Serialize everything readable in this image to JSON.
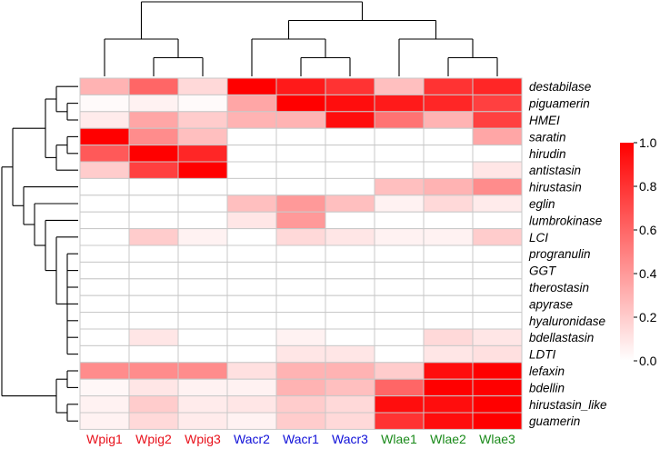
{
  "chart_data": {
    "type": "heatmap",
    "title": "",
    "columns": [
      "Wpig1",
      "Wpig2",
      "Wpig3",
      "Wacr2",
      "Wacr1",
      "Wacr3",
      "Wlae1",
      "Wlae2",
      "Wlae3"
    ],
    "column_colors": [
      "#e8101a",
      "#e8101a",
      "#e8101a",
      "#1010d8",
      "#1010d8",
      "#1010d8",
      "#1a8a1a",
      "#1a8a1a",
      "#1a8a1a"
    ],
    "rows": [
      "destabilase",
      "piguamerin",
      "HMEI",
      "saratin",
      "hirudin",
      "antistasin",
      "hirustasin",
      "eglin",
      "lumbrokinase",
      "LCI",
      "progranulin",
      "GGT",
      "therostasin",
      "apyrase",
      "hyaluronidase",
      "bdellastasin",
      "LDTI",
      "lefaxin",
      "bdellin",
      "hirustasin_like",
      "guamerin"
    ],
    "values": [
      [
        0.3,
        0.6,
        0.15,
        1.0,
        0.9,
        0.8,
        0.25,
        0.8,
        0.85
      ],
      [
        0.02,
        0.05,
        0.02,
        0.35,
        1.0,
        0.95,
        0.9,
        0.85,
        0.75
      ],
      [
        0.08,
        0.35,
        0.2,
        0.3,
        0.3,
        0.95,
        0.55,
        0.3,
        0.75
      ],
      [
        1.0,
        0.45,
        0.25,
        0.0,
        0.0,
        0.0,
        0.0,
        0.0,
        0.35
      ],
      [
        0.65,
        1.0,
        0.85,
        0.0,
        0.0,
        0.0,
        0.0,
        0.0,
        0.0
      ],
      [
        0.2,
        0.75,
        1.0,
        0.0,
        0.0,
        0.0,
        0.0,
        0.0,
        0.1
      ],
      [
        0.0,
        0.0,
        0.0,
        0.0,
        0.0,
        0.0,
        0.25,
        0.3,
        0.45
      ],
      [
        0.0,
        0.0,
        0.0,
        0.25,
        0.4,
        0.25,
        0.05,
        0.15,
        0.08
      ],
      [
        0.0,
        0.0,
        0.0,
        0.1,
        0.4,
        0.0,
        0.0,
        0.0,
        0.0
      ],
      [
        0.0,
        0.2,
        0.05,
        0.0,
        0.15,
        0.1,
        0.05,
        0.05,
        0.2
      ],
      [
        0.0,
        0.0,
        0.0,
        0.0,
        0.0,
        0.0,
        0.0,
        0.0,
        0.0
      ],
      [
        0.0,
        0.0,
        0.0,
        0.0,
        0.0,
        0.0,
        0.0,
        0.0,
        0.0
      ],
      [
        0.0,
        0.0,
        0.0,
        0.0,
        0.0,
        0.0,
        0.0,
        0.0,
        0.0
      ],
      [
        0.0,
        0.0,
        0.0,
        0.0,
        0.0,
        0.0,
        0.0,
        0.0,
        0.0
      ],
      [
        0.0,
        0.0,
        0.0,
        0.0,
        0.0,
        0.0,
        0.0,
        0.0,
        0.0
      ],
      [
        0.0,
        0.1,
        0.0,
        0.0,
        0.05,
        0.0,
        0.0,
        0.15,
        0.1
      ],
      [
        0.0,
        0.0,
        0.0,
        0.0,
        0.1,
        0.1,
        0.0,
        0.1,
        0.12
      ],
      [
        0.45,
        0.45,
        0.45,
        0.12,
        0.3,
        0.3,
        0.2,
        0.95,
        1.0
      ],
      [
        0.03,
        0.1,
        0.05,
        0.05,
        0.3,
        0.25,
        0.6,
        1.0,
        1.0
      ],
      [
        0.05,
        0.2,
        0.08,
        0.1,
        0.2,
        0.15,
        0.95,
        0.95,
        1.0
      ],
      [
        0.05,
        0.15,
        0.08,
        0.05,
        0.2,
        0.15,
        0.8,
        0.95,
        1.0
      ]
    ],
    "color_scale": {
      "min": 0.0,
      "max": 1.0,
      "low_color": "#ffffff",
      "high_color": "#ff0000",
      "ticks": [
        "0.0",
        "0.2",
        "0.4",
        "0.6",
        "0.8",
        "1.0"
      ]
    },
    "column_dendrogram": "((Wpig1,(Wpig2,Wpig3)),((Wacr2,(Wacr1,Wacr3)),(Wlae1,(Wlae2,Wlae3))))",
    "row_dendrogram": "((((destabilase,(piguamerin,HMEI)),((saratin,hirudin),antistasin)),(hirustasin,(eglin,(lumbrokinase,(LCI,(progranulin,GGT,therostasin,apyrase,hyaluronidase,bdellastasin,LDTI)))))),((lefaxin,bdellin),(hirustasin_like,guamerin)))"
  }
}
